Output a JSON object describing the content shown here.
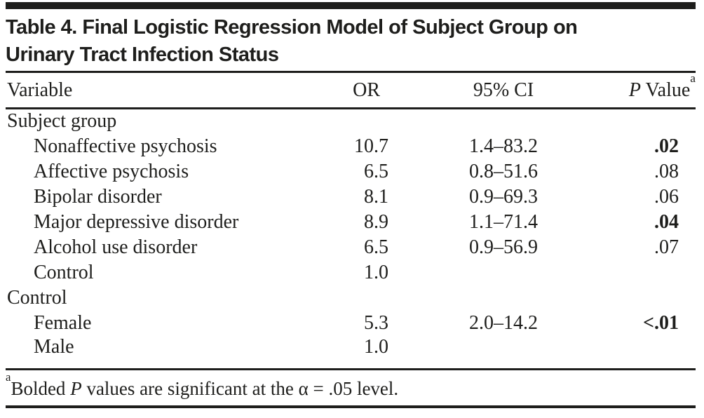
{
  "title": {
    "full": "Table 4. Final Logistic Regression Model of Subject Group on Urinary Tract Infection Status",
    "lines": [
      "Table 4. Final Logistic Regression Model of Subject Group on",
      "Urinary Tract Infection Status"
    ]
  },
  "columns": {
    "variable": "Variable",
    "or": "OR",
    "ci": "95% CI",
    "p_italic": "P",
    "p_text": " Value",
    "p_sup": "a"
  },
  "rows": [
    {
      "variable": "Subject group",
      "or": "",
      "ci": "",
      "p": "",
      "type": "group-label",
      "p_bold": false
    },
    {
      "variable": "Nonaffective psychosis",
      "or": "10.7",
      "ci": "1.4–83.2",
      "p": ".02",
      "type": "item",
      "p_bold": true
    },
    {
      "variable": "Affective psychosis",
      "or": "6.5",
      "ci": "0.8–51.6",
      "p": ".08",
      "type": "item",
      "p_bold": false
    },
    {
      "variable": "Bipolar disorder",
      "or": "8.1",
      "ci": "0.9–69.3",
      "p": ".06",
      "type": "item",
      "p_bold": false
    },
    {
      "variable": "Major depressive disorder",
      "or": "8.9",
      "ci": "1.1–71.4",
      "p": ".04",
      "type": "item",
      "p_bold": true
    },
    {
      "variable": "Alcohol use disorder",
      "or": "6.5",
      "ci": "0.9–56.9",
      "p": ".07",
      "type": "item",
      "p_bold": false
    },
    {
      "variable": "Control",
      "or": "1.0",
      "ci": "",
      "p": "",
      "type": "item",
      "p_bold": false
    },
    {
      "variable": "Control",
      "or": "",
      "ci": "",
      "p": "",
      "type": "group-label",
      "p_bold": false
    },
    {
      "variable": "Female",
      "or": "5.3",
      "ci": "2.0–14.2",
      "p": "<.01",
      "type": "item",
      "p_bold": true
    },
    {
      "variable": "Male",
      "or": "1.0",
      "ci": "",
      "p": "",
      "type": "item",
      "p_bold": false
    }
  ],
  "footnote": {
    "sup": "a",
    "pre": "Bolded ",
    "p_italic": "P",
    "post": " values are significant at the α = .05 level."
  },
  "colors": {
    "text": "#1e1e1c",
    "rule": "#1e1e1c",
    "background": "#ffffff"
  }
}
